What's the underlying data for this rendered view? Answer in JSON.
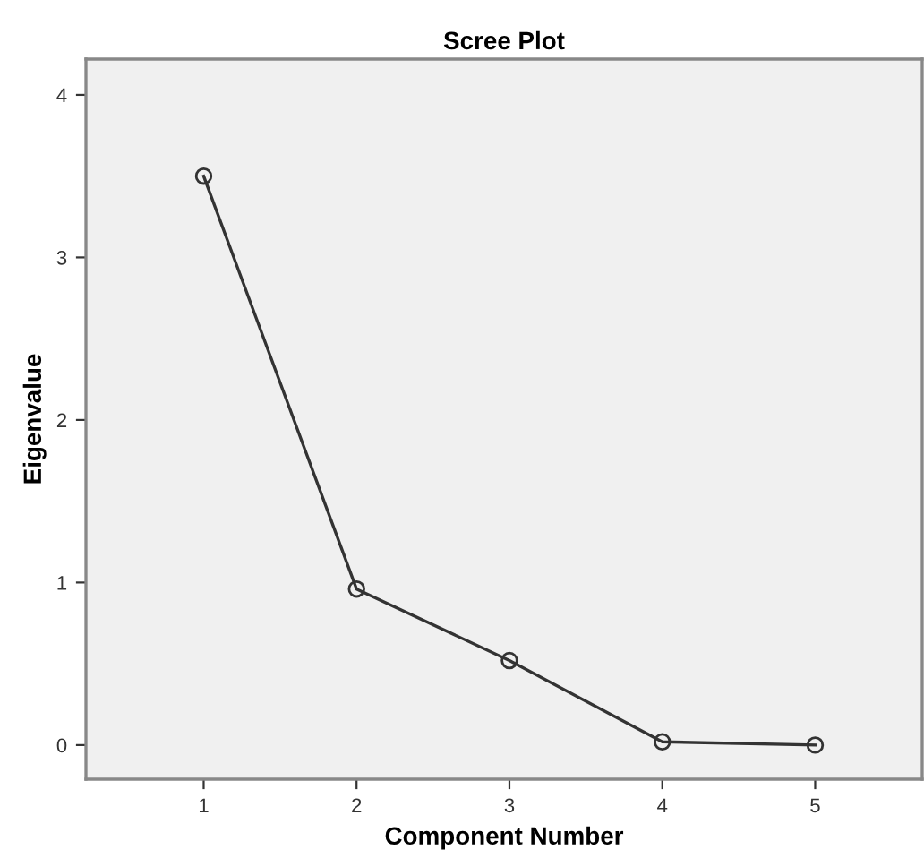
{
  "chart_data": {
    "type": "line",
    "title": "Scree Plot",
    "xlabel": "Component Number",
    "ylabel": "Eigenvalue",
    "x": [
      1,
      2,
      3,
      4,
      5
    ],
    "series": [
      {
        "color": "#333333",
        "values": [
          3.5,
          0.96,
          0.52,
          0.02,
          0.0
        ]
      }
    ],
    "xlim": [
      0.23,
      5.7
    ],
    "xticks": [
      1,
      2,
      3,
      4,
      5
    ],
    "ylim": [
      -0.21,
      4.22
    ],
    "yticks": [
      0,
      1,
      2,
      3,
      4
    ],
    "marker": "circle",
    "line_style": "solid",
    "grid": false,
    "legend": false
  }
}
